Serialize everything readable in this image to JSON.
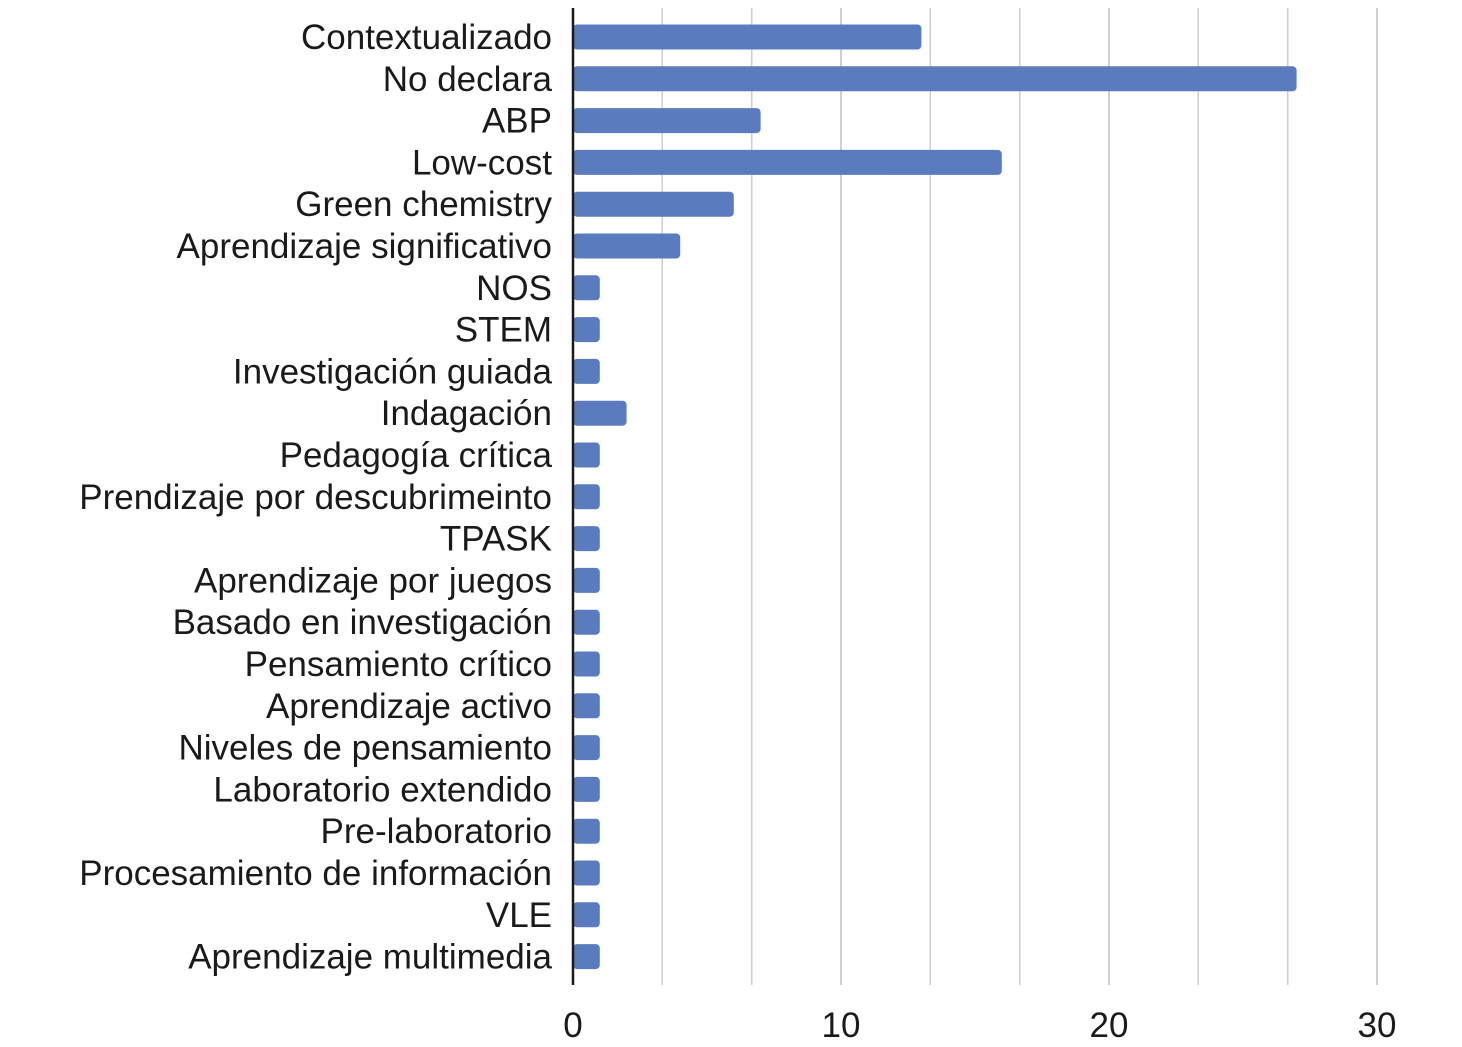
{
  "chart_data": {
    "type": "bar",
    "orientation": "horizontal",
    "title": "",
    "xlabel": "",
    "ylabel": "",
    "xlim": [
      0,
      33
    ],
    "x_ticks": [
      0,
      10,
      20,
      30
    ],
    "x_tick_labels": [
      "0",
      "10",
      "20",
      "30"
    ],
    "minor_gridlines": [
      3.33,
      6.67,
      13.33,
      16.67,
      23.33,
      26.67
    ],
    "grid": true,
    "legend": "none",
    "bar_color": "#5b7bbf",
    "categories": [
      "Contextualizado",
      "No declara",
      "ABP",
      "Low-cost",
      "Green chemistry",
      "Aprendizaje significativo",
      "NOS",
      "STEM",
      "Investigación guiada",
      "Indagación",
      "Pedagogía crítica",
      "Prendizaje por descubrimeinto",
      "TPASK",
      "Aprendizaje por juegos",
      "Basado en investigación",
      "Pensamiento crítico",
      "Aprendizaje activo",
      "Niveles de pensamiento",
      "Laboratorio extendido",
      "Pre-laboratorio",
      "Procesamiento de información",
      "VLE",
      "Aprendizaje multimedia"
    ],
    "values": [
      13,
      27,
      7,
      16,
      6,
      4,
      1,
      1,
      1,
      2,
      1,
      1,
      1,
      1,
      1,
      1,
      1,
      1,
      1,
      1,
      1,
      1,
      1
    ]
  }
}
